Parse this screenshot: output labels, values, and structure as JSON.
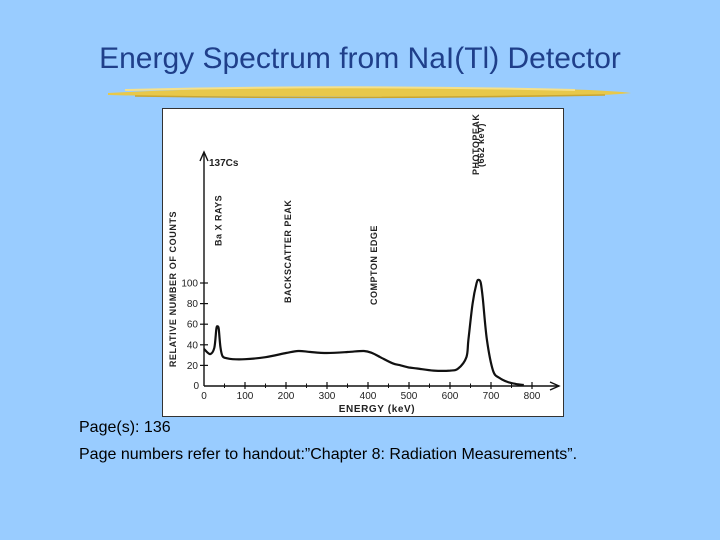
{
  "slide": {
    "title": "Energy Spectrum from NaI(Tl) Detector",
    "caption_pages": "Page(s): 136",
    "caption_note": "Page numbers refer to handout:”Chapter 8: Radiation Measurements”."
  },
  "colors": {
    "background": "#99ccff",
    "title": "#1f3f8a",
    "underline": "#e8c84a",
    "ink": "#111111"
  },
  "chart_data": {
    "type": "line",
    "title": "",
    "xlabel": "ENERGY (keV)",
    "ylabel": "RELATIVE NUMBER OF COUNTS",
    "xlim": [
      0,
      850
    ],
    "ylim": [
      0,
      110
    ],
    "x_ticks": [
      100,
      200,
      300,
      400,
      500,
      600,
      700,
      800
    ],
    "y_ticks": [
      20,
      40,
      60,
      80,
      100
    ],
    "series": [
      {
        "name": "",
        "x": [
          0,
          15,
          25,
          30,
          33,
          36,
          40,
          45,
          55,
          70,
          100,
          150,
          200,
          230,
          260,
          300,
          350,
          390,
          410,
          430,
          460,
          480,
          500,
          520,
          560,
          600,
          620,
          640,
          645,
          655,
          665,
          670,
          675,
          680,
          690,
          705,
          720,
          740,
          760,
          780
        ],
        "y": [
          36,
          31,
          37,
          55,
          58,
          55,
          38,
          29,
          27,
          26,
          26,
          28,
          32,
          34,
          33,
          32,
          33,
          34,
          32,
          28,
          22,
          20,
          18,
          17,
          15,
          15,
          17,
          28,
          45,
          80,
          100,
          103,
          100,
          85,
          45,
          15,
          8,
          4,
          2,
          1
        ]
      }
    ],
    "annotations": {
      "source": "137Cs",
      "xray": "Ba X RAYS",
      "backscatter": "BACKSCATTER PEAK",
      "compton": "COMPTON EDGE",
      "photopeak": "PHOTOPEAK",
      "photopeak_energy": "(662 keV)"
    },
    "annotation_x": {
      "xray": 35,
      "backscatter": 205,
      "compton": 415,
      "photopeak": 670
    },
    "grid": false,
    "legend": "none"
  }
}
